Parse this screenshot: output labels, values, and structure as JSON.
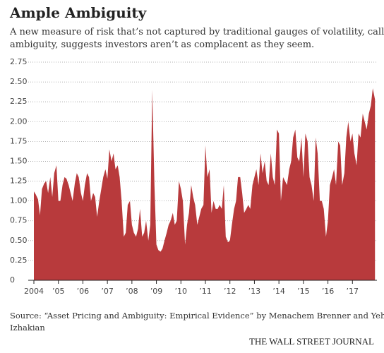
{
  "chart_data": {
    "type": "area",
    "title": "Ample Ambiguity",
    "subtitle": [
      "A new measure of risk that’s not captured by traditional gauges of volatility, called",
      "ambiguity, suggests investors aren’t as complacent as they seem."
    ],
    "source": [
      "Source: “Asset Pricing and Ambiguity: Empirical Evidence” by Menachem Brenner and Yehuda",
      "Izhakian"
    ],
    "credit": "THE WALL STREET JOURNAL",
    "color": "#b83a3c",
    "grid": true,
    "xlim": [
      2004,
      2018
    ],
    "ylim": [
      0,
      2.75
    ],
    "xticks": [
      2004,
      {
        "value": 2005,
        "label": "’05"
      },
      {
        "value": 2006,
        "label": "’06"
      },
      {
        "value": 2007,
        "label": "’07"
      },
      {
        "value": 2008,
        "label": "’08"
      },
      {
        "value": 2009,
        "label": "’09"
      },
      {
        "value": 2010,
        "label": "’10"
      },
      {
        "value": 2011,
        "label": "’11"
      },
      {
        "value": 2012,
        "label": "’12"
      },
      {
        "value": 2013,
        "label": "’13"
      },
      {
        "value": 2014,
        "label": "’14"
      },
      {
        "value": 2015,
        "label": "’15"
      },
      {
        "value": 2016,
        "label": "’16"
      },
      {
        "value": 2017,
        "label": "’17"
      }
    ],
    "yticks": [
      0,
      0.25,
      {
        "value": 0.5,
        "label": "0.50"
      },
      0.75,
      {
        "value": 1,
        "label": "1.00"
      },
      1.25,
      {
        "value": 1.5,
        "label": "1.50"
      },
      1.75,
      {
        "value": 2,
        "label": "2.00"
      },
      2.25,
      {
        "value": 2.5,
        "label": "2.50"
      },
      2.75
    ],
    "x": [
      2004,
      2004.08,
      2004.17,
      2004.25,
      2004.33,
      2004.42,
      2004.5,
      2004.58,
      2004.67,
      2004.75,
      2004.83,
      2004.92,
      2005,
      2005.08,
      2005.17,
      2005.25,
      2005.33,
      2005.42,
      2005.5,
      2005.58,
      2005.67,
      2005.75,
      2005.83,
      2005.92,
      2006,
      2006.08,
      2006.17,
      2006.25,
      2006.33,
      2006.42,
      2006.5,
      2006.58,
      2006.67,
      2006.75,
      2006.83,
      2006.92,
      2007,
      2007.08,
      2007.17,
      2007.25,
      2007.33,
      2007.42,
      2007.5,
      2007.58,
      2007.67,
      2007.75,
      2007.83,
      2007.92,
      2008,
      2008.08,
      2008.17,
      2008.25,
      2008.33,
      2008.42,
      2008.5,
      2008.58,
      2008.67,
      2008.75,
      2008.83,
      2008.92,
      2009,
      2009.08,
      2009.17,
      2009.25,
      2009.33,
      2009.42,
      2009.5,
      2009.58,
      2009.67,
      2009.75,
      2009.83,
      2009.92,
      2010,
      2010.08,
      2010.17,
      2010.25,
      2010.33,
      2010.42,
      2010.5,
      2010.58,
      2010.67,
      2010.75,
      2010.83,
      2010.92,
      2011,
      2011.08,
      2011.17,
      2011.25,
      2011.33,
      2011.42,
      2011.5,
      2011.58,
      2011.67,
      2011.75,
      2011.83,
      2011.92,
      2012,
      2012.08,
      2012.17,
      2012.25,
      2012.33,
      2012.42,
      2012.5,
      2012.58,
      2012.67,
      2012.75,
      2012.83,
      2012.92,
      2013,
      2013.08,
      2013.17,
      2013.25,
      2013.33,
      2013.42,
      2013.5,
      2013.58,
      2013.67,
      2013.75,
      2013.83,
      2013.92,
      2014,
      2014.08,
      2014.17,
      2014.25,
      2014.33,
      2014.42,
      2014.5,
      2014.58,
      2014.67,
      2014.75,
      2014.83,
      2014.92,
      2015,
      2015.08,
      2015.17,
      2015.25,
      2015.33,
      2015.42,
      2015.5,
      2015.58,
      2015.67,
      2015.75,
      2015.83,
      2015.92,
      2016,
      2016.08,
      2016.17,
      2016.25,
      2016.33,
      2016.42,
      2016.5,
      2016.58,
      2016.67,
      2016.75,
      2016.83,
      2016.92,
      2017,
      2017.08,
      2017.17,
      2017.25,
      2017.33,
      2017.42,
      2017.5,
      2017.58,
      2017.67,
      2017.75,
      2017.83,
      2017.92
    ],
    "values": [
      1.12,
      1.08,
      1.02,
      0.82,
      1.15,
      1.22,
      1.25,
      1.1,
      1.3,
      1.05,
      1.35,
      1.45,
      1.0,
      1.0,
      1.2,
      1.3,
      1.28,
      1.2,
      1.1,
      1.0,
      1.22,
      1.35,
      1.3,
      1.1,
      1.0,
      1.2,
      1.35,
      1.3,
      1.0,
      1.1,
      1.05,
      0.8,
      1.0,
      1.15,
      1.3,
      1.4,
      1.28,
      1.65,
      1.5,
      1.6,
      1.4,
      1.45,
      1.3,
      1.0,
      0.55,
      0.6,
      0.95,
      1.0,
      0.7,
      0.6,
      0.55,
      0.65,
      0.9,
      0.55,
      0.6,
      0.75,
      0.5,
      0.7,
      2.4,
      1.2,
      0.45,
      0.38,
      0.36,
      0.4,
      0.5,
      0.6,
      0.7,
      0.75,
      0.85,
      0.7,
      0.75,
      1.25,
      1.15,
      1.0,
      0.45,
      0.7,
      0.85,
      1.2,
      1.05,
      0.95,
      0.7,
      0.8,
      0.9,
      0.95,
      1.7,
      1.3,
      1.4,
      0.85,
      1.0,
      0.9,
      0.9,
      0.95,
      0.9,
      1.2,
      0.55,
      0.48,
      0.5,
      0.7,
      0.9,
      1.0,
      1.3,
      1.3,
      1.1,
      0.85,
      0.9,
      0.95,
      0.9,
      1.2,
      1.3,
      1.4,
      1.2,
      1.6,
      1.35,
      1.5,
      1.25,
      1.2,
      1.6,
      1.3,
      1.2,
      1.9,
      1.85,
      1.0,
      1.3,
      1.25,
      1.2,
      1.4,
      1.5,
      1.8,
      1.9,
      1.55,
      1.5,
      1.8,
      1.3,
      1.85,
      1.75,
      1.3,
      1.2,
      1.0,
      1.8,
      1.6,
      1.0,
      1.0,
      0.9,
      0.55,
      0.75,
      1.2,
      1.3,
      1.4,
      1.2,
      1.75,
      1.7,
      1.2,
      1.35,
      1.8,
      2.0,
      1.75,
      1.85,
      1.6,
      1.45,
      1.85,
      1.8,
      2.1,
      2.0,
      1.9,
      2.1,
      2.2,
      2.42,
      2.28
    ]
  }
}
